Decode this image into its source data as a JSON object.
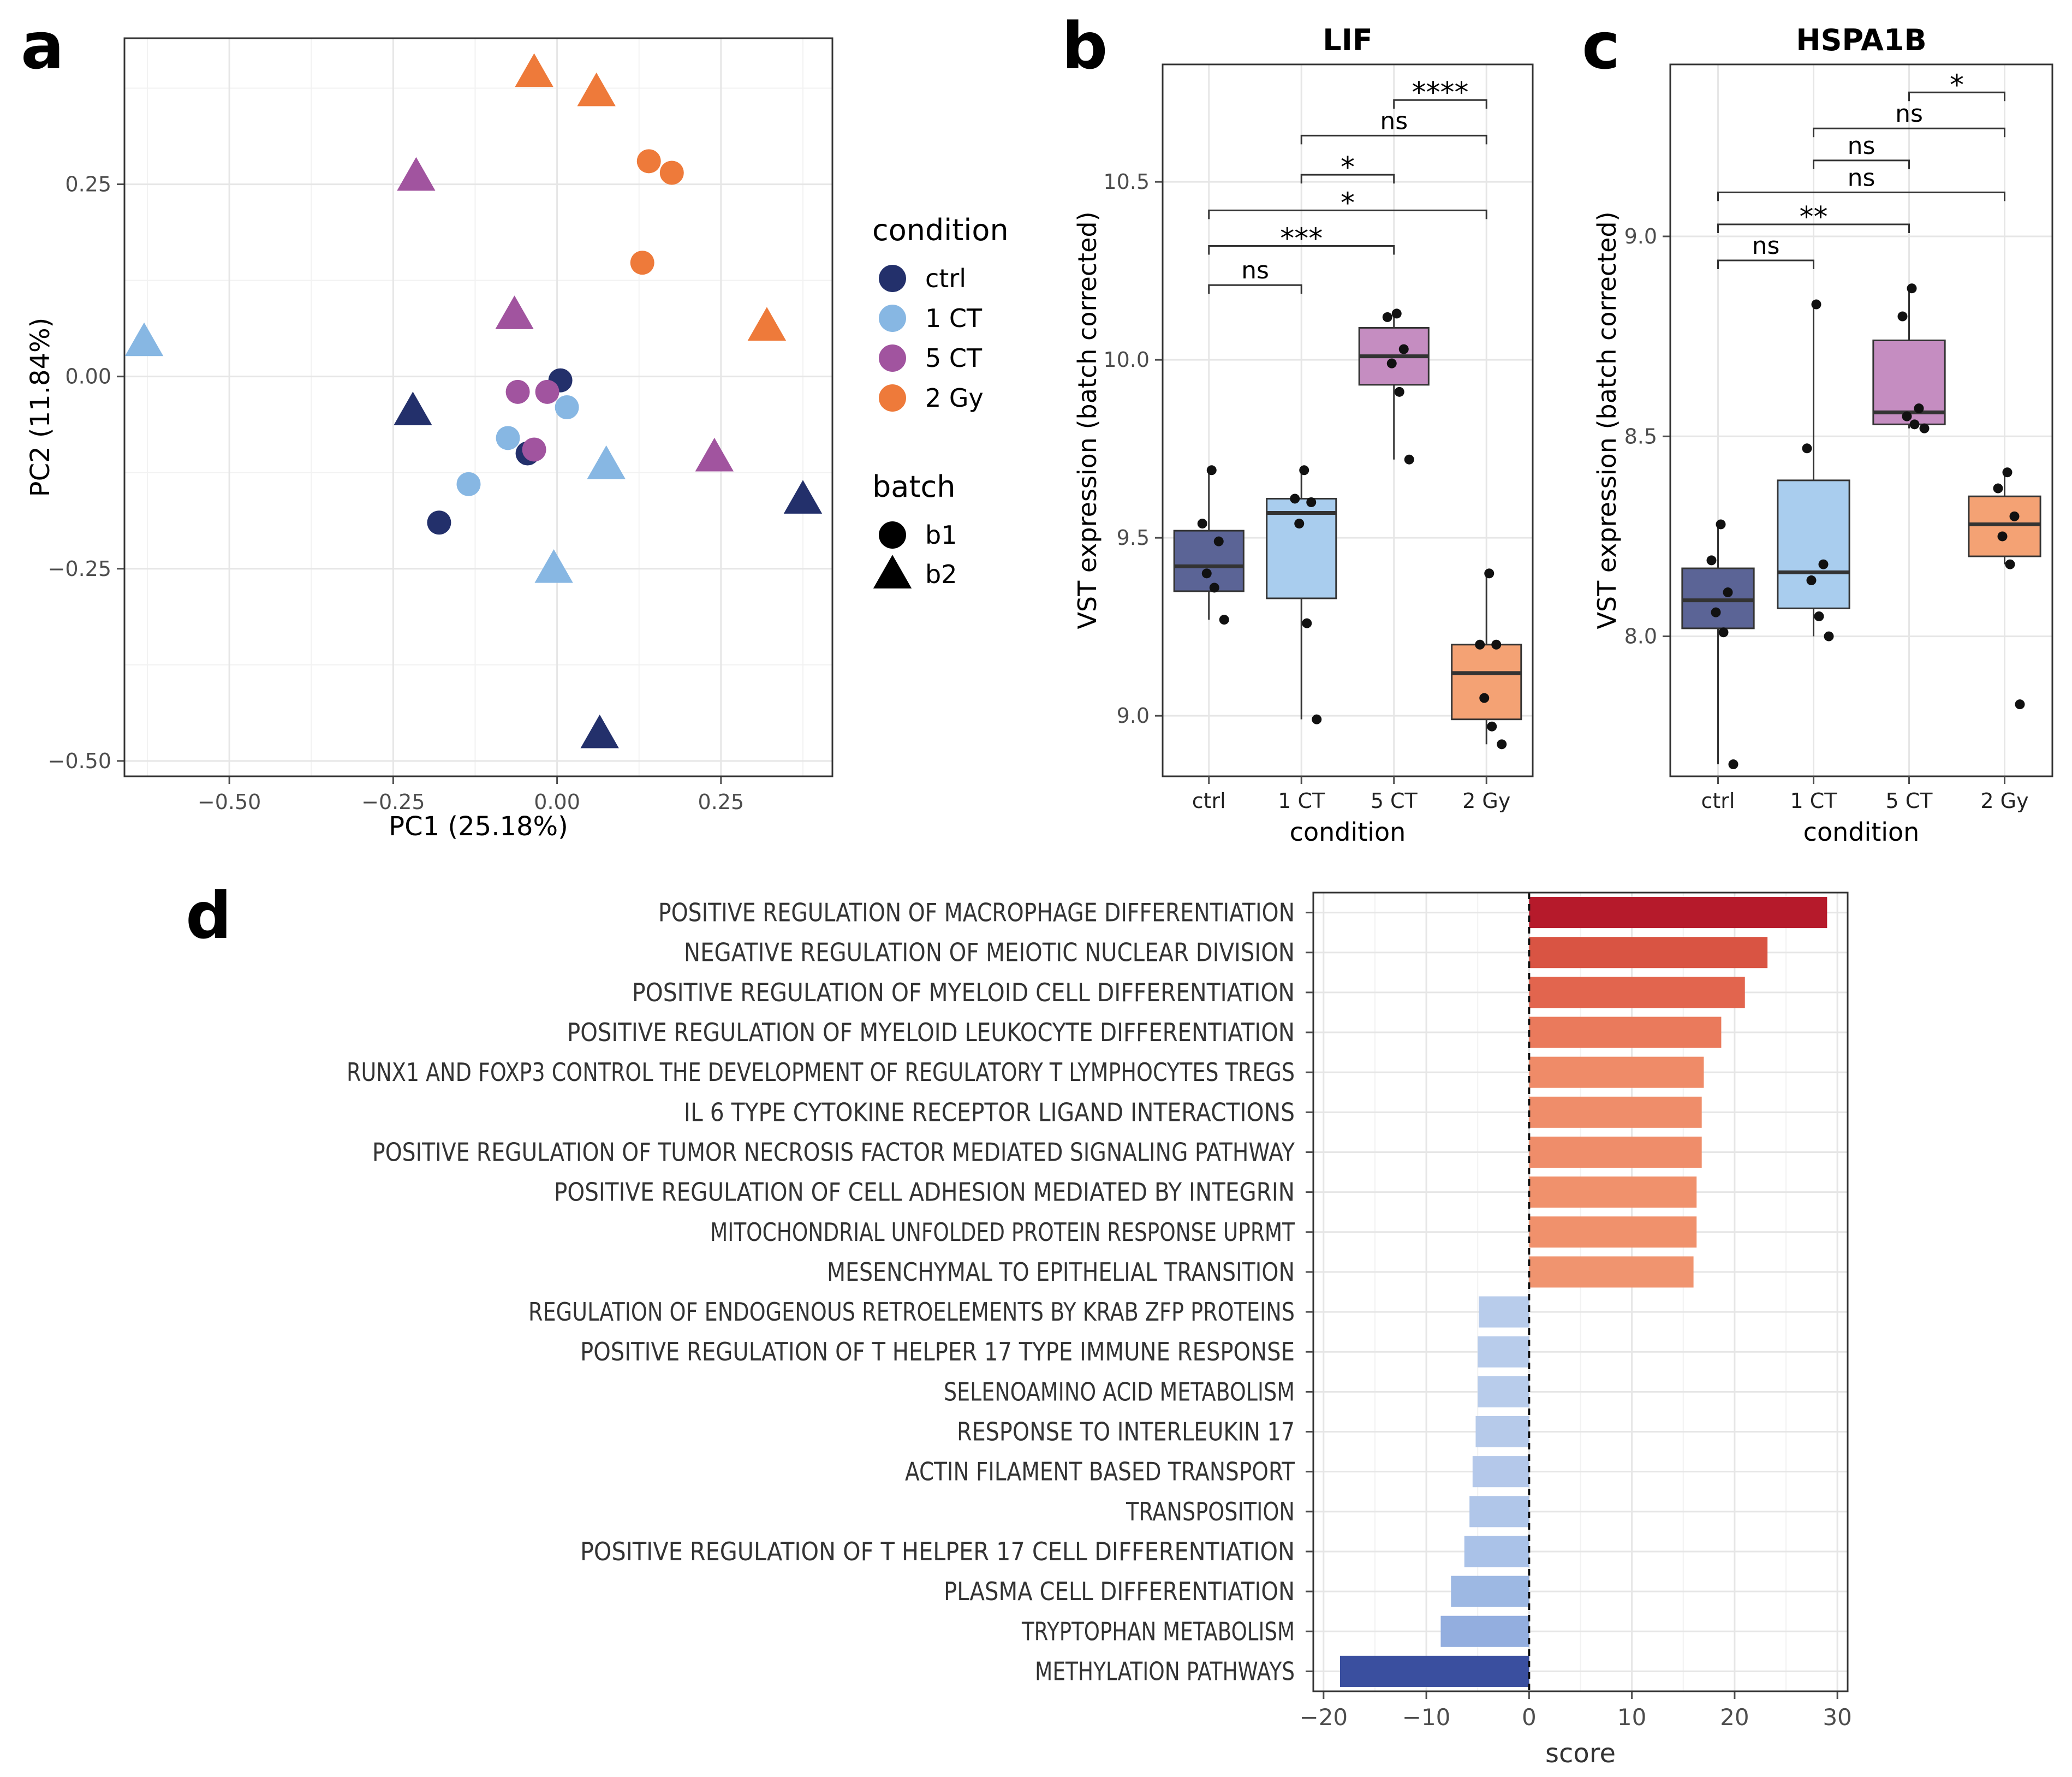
{
  "panel_letters": {
    "a": "a",
    "b": "b",
    "c": "c",
    "d": "d"
  },
  "colors": {
    "ctrl": "#23306b",
    "1 CT": "#87b7e3",
    "5 CT": "#a1549f",
    "2 Gy": "#ee7a3a",
    "box_ctrl": "#5b6496",
    "box_1CT": "#a9cdee",
    "box_5CT": "#c58dc1",
    "box_2Gy": "#f4a274",
    "axis": "#4d4d4d",
    "grid": "#e6e6e6"
  },
  "chart_data": [
    {
      "id": "a",
      "type": "scatter",
      "xlabel": "PC1 (25.18%)",
      "ylabel": "PC2 (11.84%)",
      "xlim": [
        -0.66,
        0.42
      ],
      "ylim": [
        -0.52,
        0.44
      ],
      "xticks": [
        -0.5,
        -0.25,
        0.0,
        0.25
      ],
      "xtick_labels": [
        "−0.50",
        "−0.25",
        "0.00",
        "0.25"
      ],
      "yticks": [
        -0.5,
        -0.25,
        0.0,
        0.25
      ],
      "ytick_labels": [
        "−0.50",
        "−0.25",
        "0.00",
        "0.25"
      ],
      "legend": {
        "condition_title": "condition",
        "conditions": [
          "ctrl",
          "1 CT",
          "5 CT",
          "2 Gy"
        ],
        "batch_title": "batch",
        "batches": [
          "b1",
          "b2"
        ]
      },
      "points": [
        {
          "x": 0.005,
          "y": -0.005,
          "condition": "ctrl",
          "batch": "b1"
        },
        {
          "x": -0.045,
          "y": -0.1,
          "condition": "ctrl",
          "batch": "b1"
        },
        {
          "x": -0.18,
          "y": -0.19,
          "condition": "ctrl",
          "batch": "b1"
        },
        {
          "x": 0.015,
          "y": -0.04,
          "condition": "1 CT",
          "batch": "b1"
        },
        {
          "x": -0.075,
          "y": -0.08,
          "condition": "1 CT",
          "batch": "b1"
        },
        {
          "x": -0.135,
          "y": -0.14,
          "condition": "1 CT",
          "batch": "b1"
        },
        {
          "x": -0.06,
          "y": -0.02,
          "condition": "5 CT",
          "batch": "b1"
        },
        {
          "x": -0.015,
          "y": -0.02,
          "condition": "5 CT",
          "batch": "b1"
        },
        {
          "x": -0.035,
          "y": -0.095,
          "condition": "5 CT",
          "batch": "b1"
        },
        {
          "x": 0.14,
          "y": 0.28,
          "condition": "2 Gy",
          "batch": "b1"
        },
        {
          "x": 0.175,
          "y": 0.265,
          "condition": "2 Gy",
          "batch": "b1"
        },
        {
          "x": 0.13,
          "y": 0.148,
          "condition": "2 Gy",
          "batch": "b1"
        },
        {
          "x": -0.22,
          "y": -0.045,
          "condition": "ctrl",
          "batch": "b2"
        },
        {
          "x": 0.375,
          "y": -0.16,
          "condition": "ctrl",
          "batch": "b2"
        },
        {
          "x": 0.065,
          "y": -0.465,
          "condition": "ctrl",
          "batch": "b2"
        },
        {
          "x": -0.63,
          "y": 0.045,
          "condition": "1 CT",
          "batch": "b2"
        },
        {
          "x": 0.075,
          "y": -0.115,
          "condition": "1 CT",
          "batch": "b2"
        },
        {
          "x": -0.005,
          "y": -0.25,
          "condition": "1 CT",
          "batch": "b2"
        },
        {
          "x": -0.215,
          "y": 0.26,
          "condition": "5 CT",
          "batch": "b2"
        },
        {
          "x": -0.065,
          "y": 0.08,
          "condition": "5 CT",
          "batch": "b2"
        },
        {
          "x": 0.24,
          "y": -0.105,
          "condition": "5 CT",
          "batch": "b2"
        },
        {
          "x": -0.035,
          "y": 0.395,
          "condition": "2 Gy",
          "batch": "b2"
        },
        {
          "x": 0.06,
          "y": 0.37,
          "condition": "2 Gy",
          "batch": "b2"
        },
        {
          "x": 0.32,
          "y": 0.065,
          "condition": "2 Gy",
          "batch": "b2"
        }
      ]
    },
    {
      "id": "b",
      "type": "box",
      "title": "LIF",
      "xlabel": "condition",
      "ylabel": "VST expression (batch corrected)",
      "categories": [
        "ctrl",
        "1 CT",
        "5 CT",
        "2 Gy"
      ],
      "ylim": [
        8.83,
        10.83
      ],
      "yticks": [
        9.0,
        9.5,
        10.0,
        10.5
      ],
      "ytick_labels": [
        "9.0",
        "9.5",
        "10.0",
        "10.5"
      ],
      "boxes": [
        {
          "q1": 9.35,
          "median": 9.42,
          "q3": 9.52,
          "lo": 9.27,
          "hi": 9.69,
          "points": [
            9.69,
            9.54,
            9.49,
            9.4,
            9.36,
            9.27
          ]
        },
        {
          "q1": 9.33,
          "median": 9.57,
          "q3": 9.61,
          "lo": 8.99,
          "hi": 9.69,
          "points": [
            9.69,
            9.61,
            9.6,
            9.54,
            9.26,
            8.99
          ]
        },
        {
          "q1": 9.93,
          "median": 10.01,
          "q3": 10.09,
          "lo": 9.72,
          "hi": 10.13,
          "points": [
            10.13,
            10.12,
            10.03,
            9.99,
            9.91,
            9.72
          ]
        },
        {
          "q1": 8.99,
          "median": 9.12,
          "q3": 9.2,
          "lo": 8.92,
          "hi": 9.4,
          "points": [
            9.4,
            9.2,
            9.2,
            9.05,
            8.97,
            8.92
          ]
        }
      ],
      "brackets": [
        {
          "from": 0,
          "to": 1,
          "y": 10.21,
          "label": "ns"
        },
        {
          "from": 0,
          "to": 2,
          "y": 10.32,
          "label": "***"
        },
        {
          "from": 0,
          "to": 3,
          "y": 10.42,
          "label": "*"
        },
        {
          "from": 1,
          "to": 2,
          "y": 10.52,
          "label": "*"
        },
        {
          "from": 1,
          "to": 3,
          "y": 10.63,
          "label": "ns"
        },
        {
          "from": 2,
          "to": 3,
          "y": 10.73,
          "label": "****"
        }
      ]
    },
    {
      "id": "c",
      "type": "box",
      "title": "HSPA1B",
      "xlabel": "condition",
      "ylabel": "VST expression (batch corrected)",
      "categories": [
        "ctrl",
        "1 CT",
        "5 CT",
        "2 Gy"
      ],
      "ylim": [
        7.65,
        9.43
      ],
      "yticks": [
        8.0,
        8.5,
        9.0
      ],
      "ytick_labels": [
        "8.0",
        "8.5",
        "9.0"
      ],
      "boxes": [
        {
          "q1": 8.02,
          "median": 8.09,
          "q3": 8.17,
          "lo": 7.68,
          "hi": 8.28,
          "points": [
            8.28,
            8.19,
            8.11,
            8.06,
            8.01,
            7.68
          ]
        },
        {
          "q1": 8.07,
          "median": 8.16,
          "q3": 8.39,
          "lo": 8.0,
          "hi": 8.83,
          "points": [
            8.83,
            8.47,
            8.18,
            8.14,
            8.05,
            8.0
          ]
        },
        {
          "q1": 8.53,
          "median": 8.56,
          "q3": 8.74,
          "lo": 8.52,
          "hi": 8.87,
          "points": [
            8.87,
            8.8,
            8.57,
            8.55,
            8.53,
            8.52
          ]
        },
        {
          "q1": 8.2,
          "median": 8.28,
          "q3": 8.35,
          "lo": 8.18,
          "hi": 8.41,
          "points": [
            8.41,
            8.37,
            8.3,
            8.25,
            8.18,
            7.83
          ]
        }
      ],
      "brackets": [
        {
          "from": 0,
          "to": 1,
          "y": 8.94,
          "label": "ns"
        },
        {
          "from": 0,
          "to": 2,
          "y": 9.03,
          "label": "**"
        },
        {
          "from": 0,
          "to": 3,
          "y": 9.11,
          "label": "ns"
        },
        {
          "from": 1,
          "to": 2,
          "y": 9.19,
          "label": "ns"
        },
        {
          "from": 1,
          "to": 3,
          "y": 9.27,
          "label": "ns"
        },
        {
          "from": 2,
          "to": 3,
          "y": 9.36,
          "label": "*"
        }
      ]
    },
    {
      "id": "d",
      "type": "bar",
      "orientation": "horizontal",
      "xlabel": "score",
      "xlim": [
        -21,
        31
      ],
      "xticks": [
        -20,
        -10,
        0,
        10,
        20,
        30
      ],
      "xtick_labels": [
        "−20",
        "−10",
        "0",
        "10",
        "20",
        "30"
      ],
      "categories": [
        "POSITIVE REGULATION OF MACROPHAGE DIFFERENTIATION",
        "NEGATIVE REGULATION OF MEIOTIC NUCLEAR DIVISION",
        "POSITIVE REGULATION OF MYELOID CELL DIFFERENTIATION",
        "POSITIVE REGULATION OF MYELOID LEUKOCYTE DIFFERENTIATION",
        "RUNX1 AND FOXP3 CONTROL THE DEVELOPMENT OF REGULATORY T LYMPHOCYTES TREGS",
        "IL 6 TYPE CYTOKINE RECEPTOR LIGAND INTERACTIONS",
        "POSITIVE REGULATION OF TUMOR NECROSIS FACTOR MEDIATED SIGNALING PATHWAY",
        "POSITIVE REGULATION OF CELL ADHESION MEDIATED BY INTEGRIN",
        "MITOCHONDRIAL UNFOLDED PROTEIN RESPONSE UPRMT",
        "MESENCHYMAL TO EPITHELIAL TRANSITION",
        "REGULATION OF ENDOGENOUS RETROELEMENTS BY KRAB ZFP PROTEINS",
        "POSITIVE REGULATION OF T HELPER 17 TYPE IMMUNE RESPONSE",
        "SELENOAMINO ACID METABOLISM",
        "RESPONSE TO INTERLEUKIN 17",
        "ACTIN FILAMENT BASED TRANSPORT",
        "TRANSPOSITION",
        "POSITIVE REGULATION OF T HELPER 17 CELL DIFFERENTIATION",
        "PLASMA CELL DIFFERENTIATION",
        "TRYPTOPHAN METABOLISM",
        "METHYLATION PATHWAYS"
      ],
      "values": [
        29.0,
        23.2,
        21.0,
        18.7,
        17.0,
        16.8,
        16.8,
        16.3,
        16.3,
        16.0,
        -4.9,
        -5.0,
        -5.0,
        -5.2,
        -5.5,
        -5.8,
        -6.3,
        -7.6,
        -8.6,
        -18.4
      ],
      "bar_colors": [
        "#b61a2b",
        "#d95443",
        "#e2654e",
        "#ea7a5c",
        "#ef8b68",
        "#ef8d6a",
        "#ef8d6a",
        "#f0916c",
        "#f0916c",
        "#f0946f",
        "#b8cceb",
        "#b8cceb",
        "#b8cceb",
        "#b6caea",
        "#b4c8ea",
        "#b0c6e9",
        "#aac2e8",
        "#9db8e3",
        "#93aedf",
        "#3a4f9f"
      ]
    }
  ]
}
